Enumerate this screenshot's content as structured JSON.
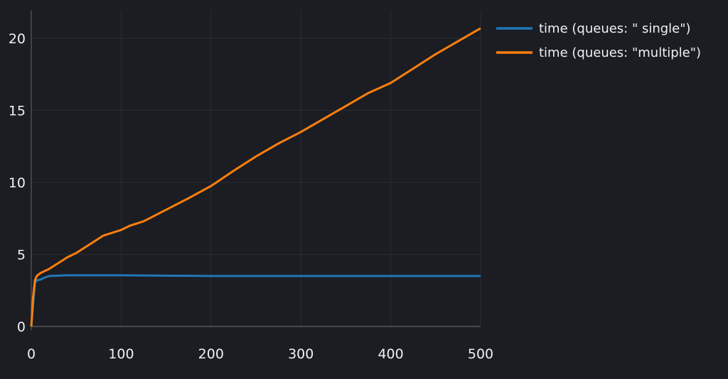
{
  "chart_data": {
    "type": "line",
    "title": "",
    "xlabel": "",
    "ylabel": "",
    "xlim": [
      0,
      500
    ],
    "ylim": [
      -1,
      21.5
    ],
    "xticks": [
      "0",
      "100",
      "200",
      "300",
      "400",
      "500"
    ],
    "yticks": [
      "0",
      "5",
      "10",
      "15",
      "20"
    ],
    "grid": true,
    "legend_position": "top-right outside",
    "series": [
      {
        "name": "time (queues: \" single\")",
        "color": "#1f77b4",
        "x": [
          0,
          2,
          4,
          6,
          10,
          15,
          20,
          40,
          100,
          200,
          300,
          400,
          500
        ],
        "y": [
          0,
          1.5,
          3.0,
          3.2,
          3.25,
          3.4,
          3.5,
          3.55,
          3.55,
          3.5,
          3.5,
          3.5,
          3.5
        ]
      },
      {
        "name": "time (queues: \"multiple\")",
        "color": "#ff7f0e",
        "x": [
          0,
          2,
          4,
          6,
          10,
          20,
          30,
          40,
          50,
          60,
          70,
          80,
          100,
          110,
          125,
          150,
          175,
          200,
          225,
          250,
          275,
          300,
          325,
          350,
          375,
          400,
          425,
          450,
          475,
          500
        ],
        "y": [
          0,
          2,
          3.2,
          3.5,
          3.7,
          4.0,
          4.4,
          4.8,
          5.1,
          5.5,
          5.9,
          6.3,
          6.7,
          7.0,
          7.3,
          8.1,
          8.9,
          9.75,
          10.8,
          11.8,
          12.7,
          13.5,
          14.4,
          15.3,
          16.2,
          16.9,
          17.9,
          18.9,
          19.8,
          20.7
        ]
      }
    ]
  }
}
